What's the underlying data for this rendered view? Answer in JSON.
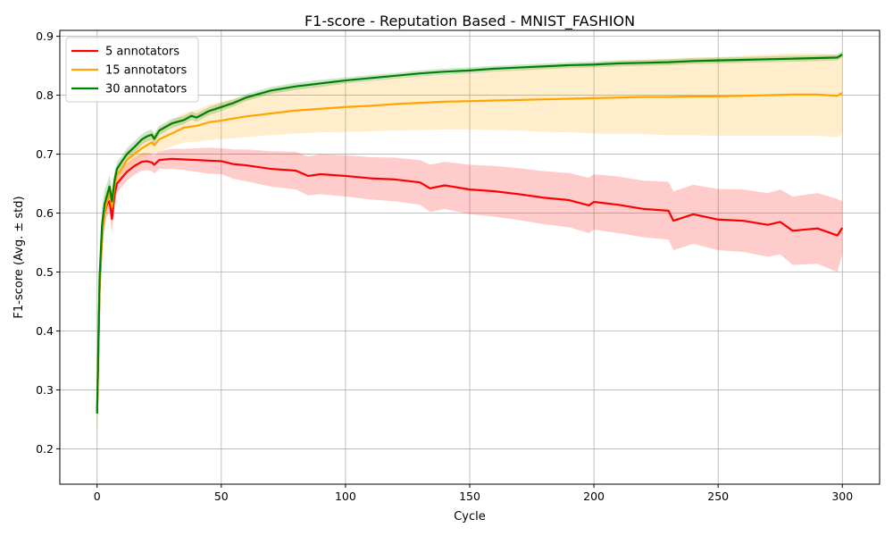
{
  "chart_data": {
    "type": "line",
    "title": "F1-score - Reputation Based - MNIST_FASHION",
    "xlabel": "Cycle",
    "ylabel": "F1-score (Avg. ± std)",
    "xlim": [
      -15,
      315
    ],
    "ylim": [
      0.14,
      0.91
    ],
    "xticks": [
      0,
      50,
      100,
      150,
      200,
      250,
      300
    ],
    "yticks": [
      0.2,
      0.3,
      0.4,
      0.5,
      0.6,
      0.7,
      0.8,
      0.9
    ],
    "grid": true,
    "legend_position": "top-left",
    "series": [
      {
        "name": "5 annotators",
        "color": "#ff0000",
        "band_color": "#ff0000",
        "x": [
          0,
          1,
          2,
          3,
          4,
          5,
          6,
          7,
          8,
          10,
          12,
          15,
          18,
          20,
          22,
          23,
          25,
          30,
          35,
          40,
          45,
          50,
          55,
          60,
          70,
          80,
          85,
          90,
          100,
          110,
          120,
          130,
          134,
          140,
          150,
          160,
          170,
          180,
          190,
          198,
          200,
          210,
          220,
          230,
          232,
          240,
          250,
          260,
          270,
          275,
          280,
          290,
          298,
          300
        ],
        "y": [
          0.26,
          0.47,
          0.56,
          0.6,
          0.615,
          0.62,
          0.59,
          0.63,
          0.65,
          0.66,
          0.67,
          0.68,
          0.687,
          0.688,
          0.686,
          0.682,
          0.69,
          0.692,
          0.691,
          0.69,
          0.689,
          0.688,
          0.683,
          0.681,
          0.675,
          0.672,
          0.663,
          0.666,
          0.663,
          0.659,
          0.657,
          0.652,
          0.642,
          0.647,
          0.64,
          0.637,
          0.632,
          0.626,
          0.622,
          0.613,
          0.619,
          0.614,
          0.607,
          0.604,
          0.587,
          0.598,
          0.589,
          0.587,
          0.58,
          0.585,
          0.57,
          0.574,
          0.562,
          0.575
        ],
        "std": [
          0.03,
          0.03,
          0.025,
          0.02,
          0.02,
          0.02,
          0.025,
          0.02,
          0.015,
          0.015,
          0.015,
          0.015,
          0.015,
          0.015,
          0.015,
          0.015,
          0.015,
          0.017,
          0.018,
          0.02,
          0.022,
          0.022,
          0.025,
          0.027,
          0.03,
          0.032,
          0.033,
          0.034,
          0.035,
          0.036,
          0.037,
          0.038,
          0.04,
          0.04,
          0.042,
          0.043,
          0.044,
          0.045,
          0.046,
          0.047,
          0.047,
          0.048,
          0.048,
          0.049,
          0.05,
          0.05,
          0.052,
          0.053,
          0.054,
          0.055,
          0.058,
          0.06,
          0.062,
          0.045
        ]
      },
      {
        "name": "15 annotators",
        "color": "#ffa500",
        "band_color": "#ffa500",
        "x": [
          0,
          1,
          2,
          3,
          4,
          5,
          6,
          7,
          8,
          10,
          12,
          15,
          18,
          20,
          22,
          23,
          25,
          30,
          35,
          40,
          45,
          50,
          60,
          70,
          80,
          90,
          100,
          110,
          120,
          130,
          140,
          150,
          160,
          170,
          180,
          190,
          200,
          210,
          220,
          230,
          240,
          250,
          260,
          270,
          280,
          290,
          298,
          300
        ],
        "y": [
          0.26,
          0.47,
          0.56,
          0.6,
          0.62,
          0.635,
          0.61,
          0.645,
          0.665,
          0.675,
          0.69,
          0.7,
          0.71,
          0.715,
          0.72,
          0.715,
          0.725,
          0.735,
          0.745,
          0.748,
          0.754,
          0.757,
          0.764,
          0.769,
          0.774,
          0.777,
          0.78,
          0.782,
          0.785,
          0.787,
          0.789,
          0.79,
          0.791,
          0.792,
          0.793,
          0.794,
          0.795,
          0.796,
          0.797,
          0.797,
          0.798,
          0.798,
          0.799,
          0.8,
          0.801,
          0.801,
          0.799,
          0.804
        ],
        "std": [
          0.04,
          0.035,
          0.03,
          0.025,
          0.02,
          0.02,
          0.025,
          0.02,
          0.015,
          0.015,
          0.015,
          0.015,
          0.016,
          0.017,
          0.018,
          0.018,
          0.02,
          0.022,
          0.025,
          0.027,
          0.03,
          0.032,
          0.035,
          0.037,
          0.039,
          0.04,
          0.042,
          0.043,
          0.045,
          0.046,
          0.047,
          0.048,
          0.05,
          0.052,
          0.055,
          0.057,
          0.06,
          0.062,
          0.063,
          0.065,
          0.066,
          0.067,
          0.068,
          0.069,
          0.07,
          0.07,
          0.07,
          0.07
        ]
      },
      {
        "name": "30 annotators",
        "color": "#008000",
        "band_color": "#008000",
        "x": [
          0,
          1,
          2,
          3,
          4,
          5,
          6,
          7,
          8,
          10,
          12,
          15,
          18,
          20,
          22,
          23,
          25,
          30,
          35,
          38,
          40,
          45,
          50,
          55,
          60,
          70,
          80,
          90,
          100,
          110,
          120,
          130,
          140,
          150,
          160,
          170,
          180,
          190,
          200,
          210,
          220,
          230,
          240,
          250,
          260,
          270,
          280,
          290,
          298,
          300
        ],
        "y": [
          0.26,
          0.49,
          0.58,
          0.615,
          0.63,
          0.645,
          0.62,
          0.655,
          0.675,
          0.688,
          0.7,
          0.712,
          0.725,
          0.73,
          0.733,
          0.726,
          0.74,
          0.752,
          0.758,
          0.765,
          0.762,
          0.773,
          0.78,
          0.787,
          0.796,
          0.808,
          0.815,
          0.82,
          0.825,
          0.829,
          0.833,
          0.837,
          0.84,
          0.842,
          0.845,
          0.847,
          0.849,
          0.851,
          0.852,
          0.854,
          0.855,
          0.856,
          0.858,
          0.859,
          0.86,
          0.861,
          0.862,
          0.863,
          0.864,
          0.869
        ],
        "std": [
          0.05,
          0.04,
          0.03,
          0.025,
          0.02,
          0.02,
          0.02,
          0.015,
          0.012,
          0.01,
          0.01,
          0.01,
          0.009,
          0.009,
          0.009,
          0.009,
          0.008,
          0.008,
          0.007,
          0.007,
          0.007,
          0.007,
          0.007,
          0.006,
          0.006,
          0.006,
          0.006,
          0.006,
          0.005,
          0.005,
          0.005,
          0.005,
          0.005,
          0.005,
          0.005,
          0.005,
          0.005,
          0.005,
          0.005,
          0.005,
          0.005,
          0.005,
          0.005,
          0.005,
          0.005,
          0.005,
          0.005,
          0.005,
          0.005,
          0.005
        ]
      }
    ]
  }
}
